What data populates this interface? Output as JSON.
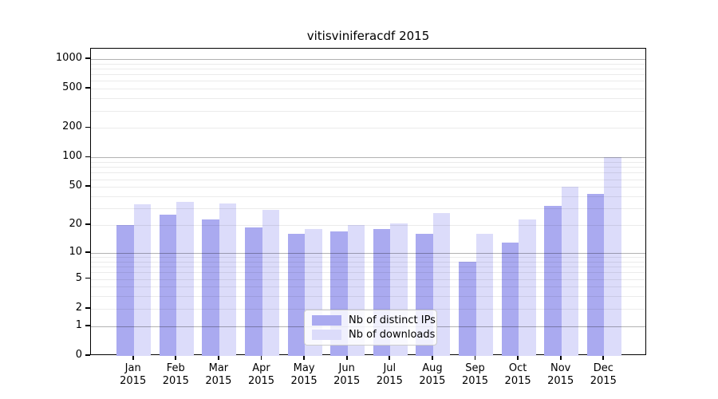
{
  "chart_data": {
    "type": "bar",
    "title": "vitisviniferacdf 2015",
    "categories": [
      "Jan",
      "Feb",
      "Mar",
      "Apr",
      "May",
      "Jun",
      "Jul",
      "Aug",
      "Sep",
      "Oct",
      "Nov",
      "Dec"
    ],
    "category_year": "2015",
    "series": [
      {
        "name": "Nb of distinct IPs",
        "color": "#aaaaf0",
        "values": [
          20,
          26,
          23,
          19,
          16,
          17,
          18,
          16,
          8,
          13,
          32,
          42
        ]
      },
      {
        "name": "Nb of downloads",
        "color": "#dcdcfa",
        "values": [
          33,
          35,
          34,
          29,
          18,
          20,
          21,
          27,
          16,
          23,
          50,
          100
        ]
      }
    ],
    "y_axis": {
      "scale": "log1p",
      "ticks": [
        0,
        1,
        2,
        5,
        10,
        20,
        50,
        100,
        200,
        500,
        1000
      ],
      "minor_gridlines": [
        3,
        4,
        6,
        7,
        8,
        9,
        30,
        40,
        60,
        70,
        80,
        90,
        300,
        400,
        600,
        700,
        800,
        900
      ],
      "ylim": [
        0,
        1400
      ]
    },
    "x_axis": {
      "tick_labels_line1": [
        "Jan",
        "Feb",
        "Mar",
        "Apr",
        "May",
        "Jun",
        "Jul",
        "Aug",
        "Sep",
        "Oct",
        "Nov",
        "Dec"
      ],
      "tick_labels_line2": [
        "2015",
        "2015",
        "2015",
        "2015",
        "2015",
        "2015",
        "2015",
        "2015",
        "2015",
        "2015",
        "2015",
        "2015"
      ]
    },
    "grid": "both",
    "legend_position": "lower center"
  },
  "colors": {
    "bar_distinct_ips": "#aaaaf0",
    "bar_downloads": "#dcdcfa",
    "grid_major": "rgba(0,0,0,0.30)",
    "grid_minor": "rgba(0,0,0,0.08)",
    "axis": "#000000",
    "legend_border": "#cccccc",
    "background": "#ffffff"
  }
}
